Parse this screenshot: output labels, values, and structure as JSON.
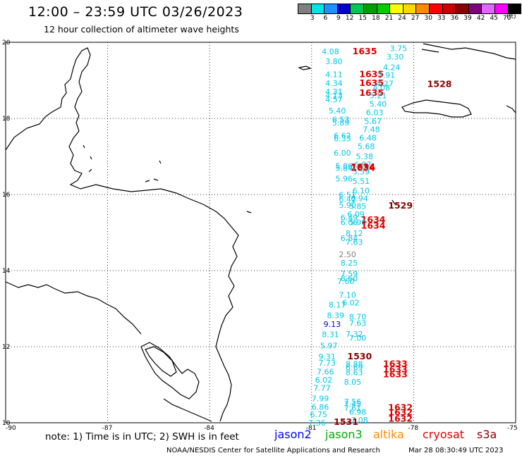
{
  "header": {
    "title": "12:00 – 23:59 UTC 03/26/2023",
    "subtitle": "12 hour collection of altimeter wave heights"
  },
  "colorbar": {
    "unit": "(ft)",
    "levels": [
      {
        "color": "#808080",
        "label": "3"
      },
      {
        "color": "#00e5e5",
        "label": "6"
      },
      {
        "color": "#1e90ff",
        "label": "9"
      },
      {
        "color": "#0000cd",
        "label": "12"
      },
      {
        "color": "#00c850",
        "label": "15"
      },
      {
        "color": "#00a000",
        "label": "18"
      },
      {
        "color": "#00cd00",
        "label": "21"
      },
      {
        "color": "#ffff00",
        "label": "24"
      },
      {
        "color": "#ffd700",
        "label": "27"
      },
      {
        "color": "#ff8c00",
        "label": "30"
      },
      {
        "color": "#ff0000",
        "label": "33"
      },
      {
        "color": "#cd0000",
        "label": "36"
      },
      {
        "color": "#8b0000",
        "label": "39"
      },
      {
        "color": "#800080",
        "label": "42"
      },
      {
        "color": "#e066ff",
        "label": "45"
      },
      {
        "color": "#ff00ff",
        "label": "70"
      },
      {
        "color": "#000000",
        "label": ""
      }
    ]
  },
  "map": {
    "lon_range": [
      -90,
      -75
    ],
    "lat_range": [
      10,
      20
    ],
    "lon_ticks": [
      "-90",
      "-87",
      "-84",
      "-81",
      "-78",
      "-75"
    ],
    "lat_ticks": [
      "20",
      "18",
      "16",
      "14",
      "12",
      "10"
    ]
  },
  "observations": [
    {
      "text": "4.08",
      "lon": -80.7,
      "lat": 19.76,
      "color": "#00c8e6"
    },
    {
      "text": "1635",
      "lon": -79.8,
      "lat": 19.76,
      "color": "#e00000",
      "big": true
    },
    {
      "text": "3.75",
      "lon": -78.7,
      "lat": 19.84,
      "color": "#00c8e6"
    },
    {
      "text": "3.30",
      "lon": -78.8,
      "lat": 19.62,
      "color": "#00c8e6"
    },
    {
      "text": "3.80",
      "lon": -80.6,
      "lat": 19.5,
      "color": "#00c8e6"
    },
    {
      "text": "4.24",
      "lon": -78.9,
      "lat": 19.34,
      "color": "#00c8e6"
    },
    {
      "text": "4.11",
      "lon": -80.6,
      "lat": 19.16,
      "color": "#00c8e6"
    },
    {
      "text": "1635",
      "lon": -79.6,
      "lat": 19.16,
      "color": "#e00000",
      "big": true
    },
    {
      "text": "3.91",
      "lon": -79.05,
      "lat": 19.14,
      "color": "#00c8e6"
    },
    {
      "text": "4.34",
      "lon": -80.6,
      "lat": 18.93,
      "color": "#00c8e6"
    },
    {
      "text": "1635",
      "lon": -79.6,
      "lat": 18.93,
      "color": "#e00000",
      "big": true
    },
    {
      "text": "4.27",
      "lon": -79.1,
      "lat": 18.92,
      "color": "#00c8e6"
    },
    {
      "text": "1528",
      "lon": -77.6,
      "lat": 18.9,
      "color": "#8b0000",
      "big": true
    },
    {
      "text": "4.08",
      "lon": -79.2,
      "lat": 18.81,
      "color": "#00c8e6"
    },
    {
      "text": "4.31",
      "lon": -80.6,
      "lat": 18.7,
      "color": "#00c8e6"
    },
    {
      "text": "1635",
      "lon": -79.6,
      "lat": 18.67,
      "color": "#e00000",
      "big": true
    },
    {
      "text": "4.13",
      "lon": -80.6,
      "lat": 18.6,
      "color": "#00c8e6"
    },
    {
      "text": "5.21",
      "lon": -79.3,
      "lat": 18.6,
      "color": "#00c8e6"
    },
    {
      "text": "4.57",
      "lon": -80.6,
      "lat": 18.5,
      "color": "#00c8e6"
    },
    {
      "text": "5.40",
      "lon": -79.3,
      "lat": 18.38,
      "color": "#00c8e6"
    },
    {
      "text": "5.40",
      "lon": -80.5,
      "lat": 18.2,
      "color": "#00c8e6"
    },
    {
      "text": "6.03",
      "lon": -79.4,
      "lat": 18.16,
      "color": "#00c8e6"
    },
    {
      "text": "6.53",
      "lon": -80.4,
      "lat": 17.97,
      "color": "#00c8e6"
    },
    {
      "text": "5.67",
      "lon": -79.45,
      "lat": 17.93,
      "color": "#00c8e6"
    },
    {
      "text": "5.89",
      "lon": -80.4,
      "lat": 17.89,
      "color": "#00c8e6"
    },
    {
      "text": "7.48",
      "lon": -79.5,
      "lat": 17.71,
      "color": "#00c8e6"
    },
    {
      "text": "6.62",
      "lon": -80.35,
      "lat": 17.55,
      "color": "#00c8e6"
    },
    {
      "text": "6.48",
      "lon": -79.6,
      "lat": 17.49,
      "color": "#00c8e6"
    },
    {
      "text": "6.33",
      "lon": -80.35,
      "lat": 17.47,
      "color": "#00c8e6"
    },
    {
      "text": "5.68",
      "lon": -79.65,
      "lat": 17.27,
      "color": "#00c8e6"
    },
    {
      "text": "6.00",
      "lon": -80.35,
      "lat": 17.09,
      "color": "#00c8e6"
    },
    {
      "text": "5.38",
      "lon": -79.7,
      "lat": 17.0,
      "color": "#00c8e6"
    },
    {
      "text": "6.87",
      "lon": -79.75,
      "lat": 16.79,
      "color": "#00c8e6"
    },
    {
      "text": "5.86",
      "lon": -80.3,
      "lat": 16.75,
      "color": "#00c8e6"
    },
    {
      "text": "5.84",
      "lon": -80.3,
      "lat": 16.69,
      "color": "#00c8e6"
    },
    {
      "text": "1634",
      "lon": -79.85,
      "lat": 16.69,
      "color": "#e00000",
      "big": true
    },
    {
      "text": "1634",
      "lon": -79.85,
      "lat": 16.72,
      "color": "#e00000",
      "big": true
    },
    {
      "text": "5.59",
      "lon": -79.8,
      "lat": 16.6,
      "color": "#00c8e6"
    },
    {
      "text": "5.96",
      "lon": -80.3,
      "lat": 16.42,
      "color": "#00c8e6"
    },
    {
      "text": "5.51",
      "lon": -79.8,
      "lat": 16.35,
      "color": "#00c8e6"
    },
    {
      "text": "6.10",
      "lon": -79.8,
      "lat": 16.1,
      "color": "#00c8e6"
    },
    {
      "text": "6.51",
      "lon": -80.2,
      "lat": 15.99,
      "color": "#00c8e6"
    },
    {
      "text": "6.94",
      "lon": -79.85,
      "lat": 15.9,
      "color": "#00c8e6"
    },
    {
      "text": "6.42",
      "lon": -80.2,
      "lat": 15.88,
      "color": "#00c8e6"
    },
    {
      "text": "5.90",
      "lon": -80.2,
      "lat": 15.72,
      "color": "#00c8e6"
    },
    {
      "text": "5.85",
      "lon": -79.9,
      "lat": 15.69,
      "color": "#00c8e6"
    },
    {
      "text": "1529",
      "lon": -78.75,
      "lat": 15.7,
      "color": "#8b0000",
      "big": true
    },
    {
      "text": "6.09",
      "lon": -79.95,
      "lat": 15.48,
      "color": "#00c8e6"
    },
    {
      "text": "6.49",
      "lon": -80.15,
      "lat": 15.4,
      "color": "#00c8e6"
    },
    {
      "text": "1634",
      "lon": -79.55,
      "lat": 15.33,
      "color": "#e00000",
      "big": true
    },
    {
      "text": "6.06",
      "lon": -80.15,
      "lat": 15.27,
      "color": "#00c8e6"
    },
    {
      "text": "5.90",
      "lon": -79.9,
      "lat": 15.27,
      "color": "#00c8e6"
    },
    {
      "text": "1634",
      "lon": -79.55,
      "lat": 15.18,
      "color": "#e00000",
      "big": true
    },
    {
      "text": "8.12",
      "lon": -80.0,
      "lat": 14.98,
      "color": "#00c8e6"
    },
    {
      "text": "6.84",
      "lon": -80.15,
      "lat": 14.85,
      "color": "#00c8e6"
    },
    {
      "text": "7.63",
      "lon": -80.0,
      "lat": 14.75,
      "color": "#00c8e6"
    },
    {
      "text": "2.50",
      "lon": -80.2,
      "lat": 14.43,
      "color": "#808080"
    },
    {
      "text": "8.25",
      "lon": -80.15,
      "lat": 14.2,
      "color": "#00c8e6"
    },
    {
      "text": "7.59",
      "lon": -80.15,
      "lat": 13.92,
      "color": "#00c8e6"
    },
    {
      "text": "8.60",
      "lon": -80.15,
      "lat": 13.8,
      "color": "#00c8e6"
    },
    {
      "text": "7.60",
      "lon": -80.25,
      "lat": 13.72,
      "color": "#00c8e6"
    },
    {
      "text": "7.10",
      "lon": -80.2,
      "lat": 13.36,
      "color": "#00c8e6"
    },
    {
      "text": "6.02",
      "lon": -80.1,
      "lat": 13.16,
      "color": "#00c8e6"
    },
    {
      "text": "8.17",
      "lon": -80.5,
      "lat": 13.1,
      "color": "#00c8e6"
    },
    {
      "text": "8.39",
      "lon": -80.55,
      "lat": 12.82,
      "color": "#00c8e6"
    },
    {
      "text": "8.70",
      "lon": -79.9,
      "lat": 12.79,
      "color": "#00c8e6"
    },
    {
      "text": "7.63",
      "lon": -79.9,
      "lat": 12.62,
      "color": "#00c8e6"
    },
    {
      "text": "9.13",
      "lon": -80.65,
      "lat": 12.59,
      "color": "#0000cd"
    },
    {
      "text": "7.32",
      "lon": -80.0,
      "lat": 12.33,
      "color": "#00c8e6"
    },
    {
      "text": "8.31",
      "lon": -80.7,
      "lat": 12.32,
      "color": "#00c8e6"
    },
    {
      "text": "7.00",
      "lon": -79.9,
      "lat": 12.23,
      "color": "#00c8e6"
    },
    {
      "text": "5.97",
      "lon": -80.75,
      "lat": 12.03,
      "color": "#00c8e6"
    },
    {
      "text": "9.31",
      "lon": -80.8,
      "lat": 11.74,
      "color": "#00c8e6"
    },
    {
      "text": "1530",
      "lon": -79.95,
      "lat": 11.74,
      "color": "#8b0000",
      "big": true
    },
    {
      "text": "1633",
      "lon": -78.9,
      "lat": 11.55,
      "color": "#e00000",
      "big": true
    },
    {
      "text": "7.73",
      "lon": -80.8,
      "lat": 11.57,
      "color": "#00c8e6"
    },
    {
      "text": "8.88",
      "lon": -80.0,
      "lat": 11.55,
      "color": "#00c8e6"
    },
    {
      "text": "6.69",
      "lon": -80.0,
      "lat": 11.45,
      "color": "#00c8e6"
    },
    {
      "text": "1633",
      "lon": -78.9,
      "lat": 11.4,
      "color": "#e00000",
      "big": true
    },
    {
      "text": "7.66",
      "lon": -80.85,
      "lat": 11.34,
      "color": "#00c8e6"
    },
    {
      "text": "8.63",
      "lon": -80.0,
      "lat": 11.32,
      "color": "#00c8e6"
    },
    {
      "text": "1633",
      "lon": -78.9,
      "lat": 11.27,
      "color": "#e00000",
      "big": true
    },
    {
      "text": "6.02",
      "lon": -80.9,
      "lat": 11.13,
      "color": "#00c8e6"
    },
    {
      "text": "8.05",
      "lon": -80.05,
      "lat": 11.07,
      "color": "#00c8e6"
    },
    {
      "text": "7.77",
      "lon": -80.95,
      "lat": 10.92,
      "color": "#00c8e6"
    },
    {
      "text": "7.99",
      "lon": -81.0,
      "lat": 10.64,
      "color": "#00c8e6"
    },
    {
      "text": "7.56",
      "lon": -80.05,
      "lat": 10.56,
      "color": "#00c8e6"
    },
    {
      "text": "7.45",
      "lon": -80.05,
      "lat": 10.49,
      "color": "#00c8e6"
    },
    {
      "text": "6.86",
      "lon": -81.0,
      "lat": 10.42,
      "color": "#00c8e6"
    },
    {
      "text": "7.61",
      "lon": -80.05,
      "lat": 10.39,
      "color": "#00c8e6"
    },
    {
      "text": "1632",
      "lon": -78.75,
      "lat": 10.4,
      "color": "#e00000",
      "big": true
    },
    {
      "text": "6.98",
      "lon": -79.9,
      "lat": 10.29,
      "color": "#00c8e6"
    },
    {
      "text": "6.75",
      "lon": -81.05,
      "lat": 10.22,
      "color": "#00c8e6"
    },
    {
      "text": "1632",
      "lon": -78.75,
      "lat": 10.27,
      "color": "#e00000",
      "big": true
    },
    {
      "text": "7.08",
      "lon": -79.85,
      "lat": 10.07,
      "color": "#00c8e6"
    },
    {
      "text": "1632",
      "lon": -78.75,
      "lat": 10.1,
      "color": "#e00000",
      "big": true
    },
    {
      "text": "7.36",
      "lon": -81.1,
      "lat": 10.0,
      "color": "#00c8e6"
    },
    {
      "text": "1531",
      "lon": -80.35,
      "lat": 10.02,
      "color": "#8b0000",
      "big": true
    }
  ],
  "footer": {
    "note": "note:  1) Time is in UTC;  2) SWH is in feet",
    "satellites": [
      {
        "name": "jason2",
        "color": "#0000ff"
      },
      {
        "name": "jason3",
        "color": "#00aa00"
      },
      {
        "name": "altika",
        "color": "#ff8c00"
      },
      {
        "name": "cryosat",
        "color": "#e00000"
      },
      {
        "name": "s3a",
        "color": "#8b0000"
      }
    ],
    "credit": "NOAA/NESDIS Center for Satellite Applications and Research",
    "timestamp": "Mar 28 08:30:49 UTC 2023"
  }
}
